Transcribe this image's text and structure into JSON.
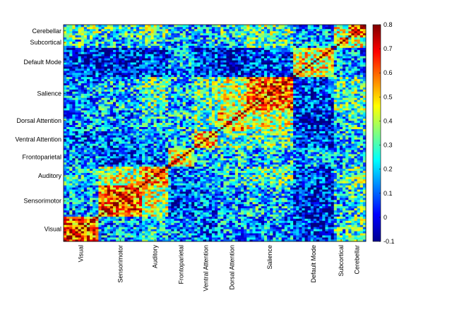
{
  "chart_data": {
    "type": "heatmap",
    "title": "",
    "xlabel": "",
    "ylabel": "",
    "networks": [
      {
        "name": "Visual",
        "n": 12
      },
      {
        "name": "Sensorimotor",
        "n": 15
      },
      {
        "name": "Auditory",
        "n": 9
      },
      {
        "name": "Frontoparietal",
        "n": 9
      },
      {
        "name": "Ventral Attention",
        "n": 8
      },
      {
        "name": "Dorsal Attention",
        "n": 10
      },
      {
        "name": "Salience",
        "n": 16
      },
      {
        "name": "Default Mode",
        "n": 14
      },
      {
        "name": "Subcortical",
        "n": 5
      },
      {
        "name": "Cerebellar",
        "n": 6
      }
    ],
    "x_tick_labels": [
      "Visual",
      "Sensorimotor",
      "Auditory",
      "Frontoparietal",
      "Ventral Attention",
      "Dorsal Attention",
      "Salience",
      "Default Mode",
      "Subcortical",
      "Cerebellar"
    ],
    "y_tick_labels": [
      "Cerebellar",
      "Subcortical",
      "Default Mode",
      "Salience",
      "Dorsal Attention",
      "Ventral Attention",
      "Frontoparietal",
      "Auditory",
      "Sensorimotor",
      "Visual"
    ],
    "block_means": [
      [
        0.6,
        0.15,
        0.22,
        0.12,
        0.1,
        0.15,
        0.15,
        0.05,
        0.25,
        0.3
      ],
      [
        0.15,
        0.6,
        0.4,
        0.05,
        0.1,
        0.15,
        0.2,
        0.0,
        0.2,
        0.25
      ],
      [
        0.22,
        0.4,
        0.55,
        0.1,
        0.15,
        0.2,
        0.3,
        0.05,
        0.25,
        0.3
      ],
      [
        0.12,
        0.05,
        0.1,
        0.45,
        0.2,
        0.2,
        0.2,
        0.15,
        0.15,
        0.2
      ],
      [
        0.1,
        0.1,
        0.15,
        0.2,
        0.5,
        0.3,
        0.3,
        0.05,
        0.2,
        0.2
      ],
      [
        0.15,
        0.15,
        0.2,
        0.2,
        0.3,
        0.5,
        0.4,
        0.0,
        0.2,
        0.25
      ],
      [
        0.15,
        0.2,
        0.3,
        0.2,
        0.3,
        0.4,
        0.6,
        0.05,
        0.3,
        0.3
      ],
      [
        0.05,
        0.0,
        0.05,
        0.15,
        0.05,
        0.0,
        0.05,
        0.45,
        0.15,
        0.15
      ],
      [
        0.25,
        0.2,
        0.25,
        0.15,
        0.2,
        0.2,
        0.3,
        0.15,
        0.5,
        0.4
      ],
      [
        0.3,
        0.25,
        0.3,
        0.2,
        0.2,
        0.25,
        0.3,
        0.15,
        0.4,
        0.55
      ]
    ],
    "colorbar": {
      "colormap": "jet",
      "range": [
        -0.1,
        0.8
      ],
      "ticks": [
        "0.8",
        "0.7",
        "0.6",
        "0.5",
        "0.4",
        "0.3",
        "0.2",
        "0.1",
        "0",
        "-0.1"
      ]
    }
  }
}
